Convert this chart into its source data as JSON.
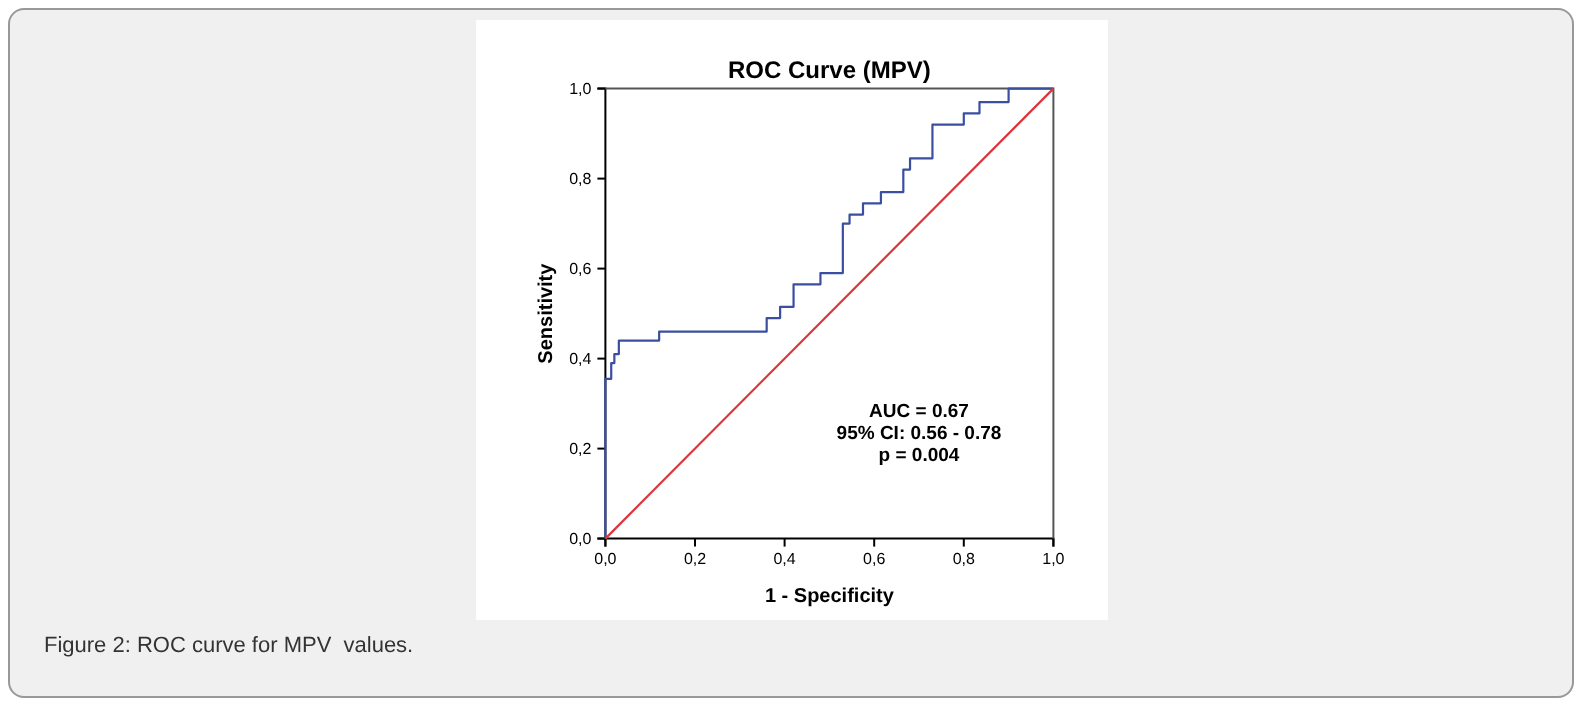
{
  "chart_data": {
    "type": "line",
    "title": "ROC Curve (MPV)",
    "xlabel": "1 - Specificity",
    "ylabel": "Sensitivity",
    "xlim": [
      0,
      1
    ],
    "ylim": [
      0,
      1
    ],
    "xticks": [
      {
        "value": 0,
        "label": "0,0"
      },
      {
        "value": 0.2,
        "label": "0,2"
      },
      {
        "value": 0.4,
        "label": "0,4"
      },
      {
        "value": 0.6,
        "label": "0,6"
      },
      {
        "value": 0.8,
        "label": "0,8"
      },
      {
        "value": 1,
        "label": "1,0"
      }
    ],
    "yticks": [
      {
        "value": 0,
        "label": "0,0"
      },
      {
        "value": 0.2,
        "label": "0,2"
      },
      {
        "value": 0.4,
        "label": "0,4"
      },
      {
        "value": 0.6,
        "label": "0,6"
      },
      {
        "value": 0.8,
        "label": "0,8"
      },
      {
        "value": 1,
        "label": "1,0"
      }
    ],
    "series": [
      {
        "color": "#3a4fa0",
        "x": [
          0,
          0,
          0.013,
          0.013,
          0.02,
          0.02,
          0.03,
          0.03,
          0.12,
          0.12,
          0.36,
          0.36,
          0.39,
          0.39,
          0.42,
          0.42,
          0.48,
          0.48,
          0.53,
          0.53,
          0.545,
          0.545,
          0.575,
          0.575,
          0.615,
          0.615,
          0.665,
          0.665,
          0.68,
          0.68,
          0.73,
          0.73,
          0.8,
          0.8,
          0.835,
          0.835,
          0.9,
          0.9,
          1
        ],
        "values": [
          0,
          0.355,
          0.355,
          0.39,
          0.39,
          0.41,
          0.41,
          0.44,
          0.44,
          0.46,
          0.46,
          0.49,
          0.49,
          0.515,
          0.515,
          0.565,
          0.565,
          0.59,
          0.59,
          0.7,
          0.7,
          0.72,
          0.72,
          0.745,
          0.745,
          0.77,
          0.77,
          0.82,
          0.82,
          0.845,
          0.845,
          0.92,
          0.92,
          0.945,
          0.945,
          0.97,
          0.97,
          1,
          1
        ]
      },
      {
        "color": "#d9373a",
        "x": [
          0,
          1
        ],
        "values": [
          0,
          1
        ]
      }
    ],
    "annotations": [
      "AUC = 0.67",
      "95% CI: 0.56 - 0.78",
      "p = 0.004",
      "Figure 2: ROC curve for MPV  values."
    ]
  }
}
